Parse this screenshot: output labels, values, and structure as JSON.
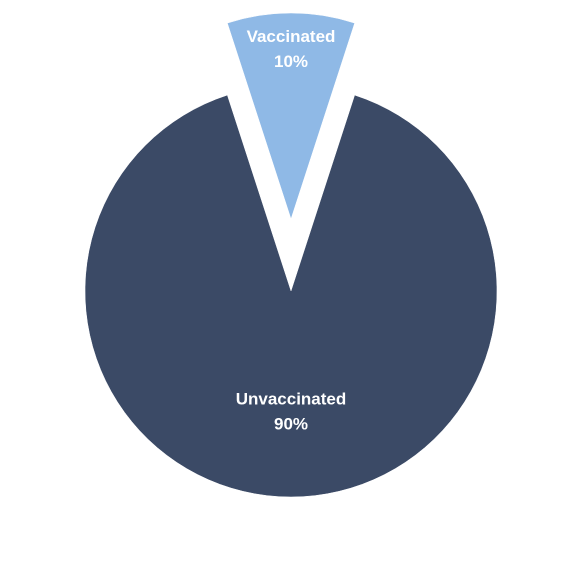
{
  "chart_data": {
    "type": "pie",
    "title": "",
    "legend": "none",
    "slices": [
      {
        "label": "Unvaccinated",
        "percent_label": "90%",
        "value": 90,
        "color": "#3b4a66",
        "exploded": false
      },
      {
        "label": "Vaccinated",
        "percent_label": "10%",
        "value": 10,
        "color": "#8fb9e6",
        "exploded": true
      }
    ]
  }
}
